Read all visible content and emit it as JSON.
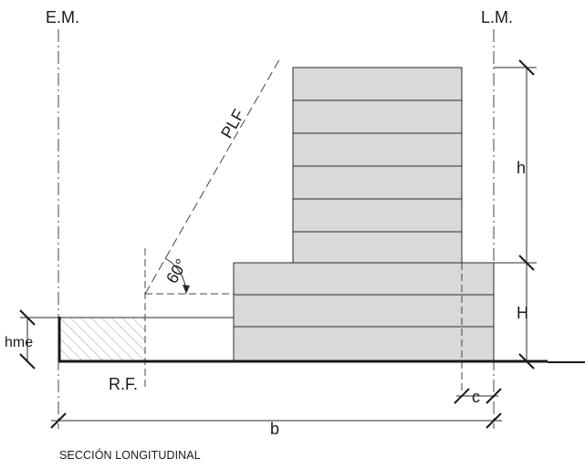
{
  "labels": {
    "em": "E.M.",
    "lm": "L.M.",
    "plf": "PLF",
    "angle": "60°",
    "h_upper": "h",
    "h_lower": "H",
    "hme": "hme",
    "rf": "R.F.",
    "c": "c",
    "b": "b"
  },
  "caption": "SECCIÓN LONGITUDINAL",
  "colors": {
    "building_fill": "#d9d9d9",
    "line": "#2a2a2a",
    "hatch": "#8a8a8a"
  }
}
